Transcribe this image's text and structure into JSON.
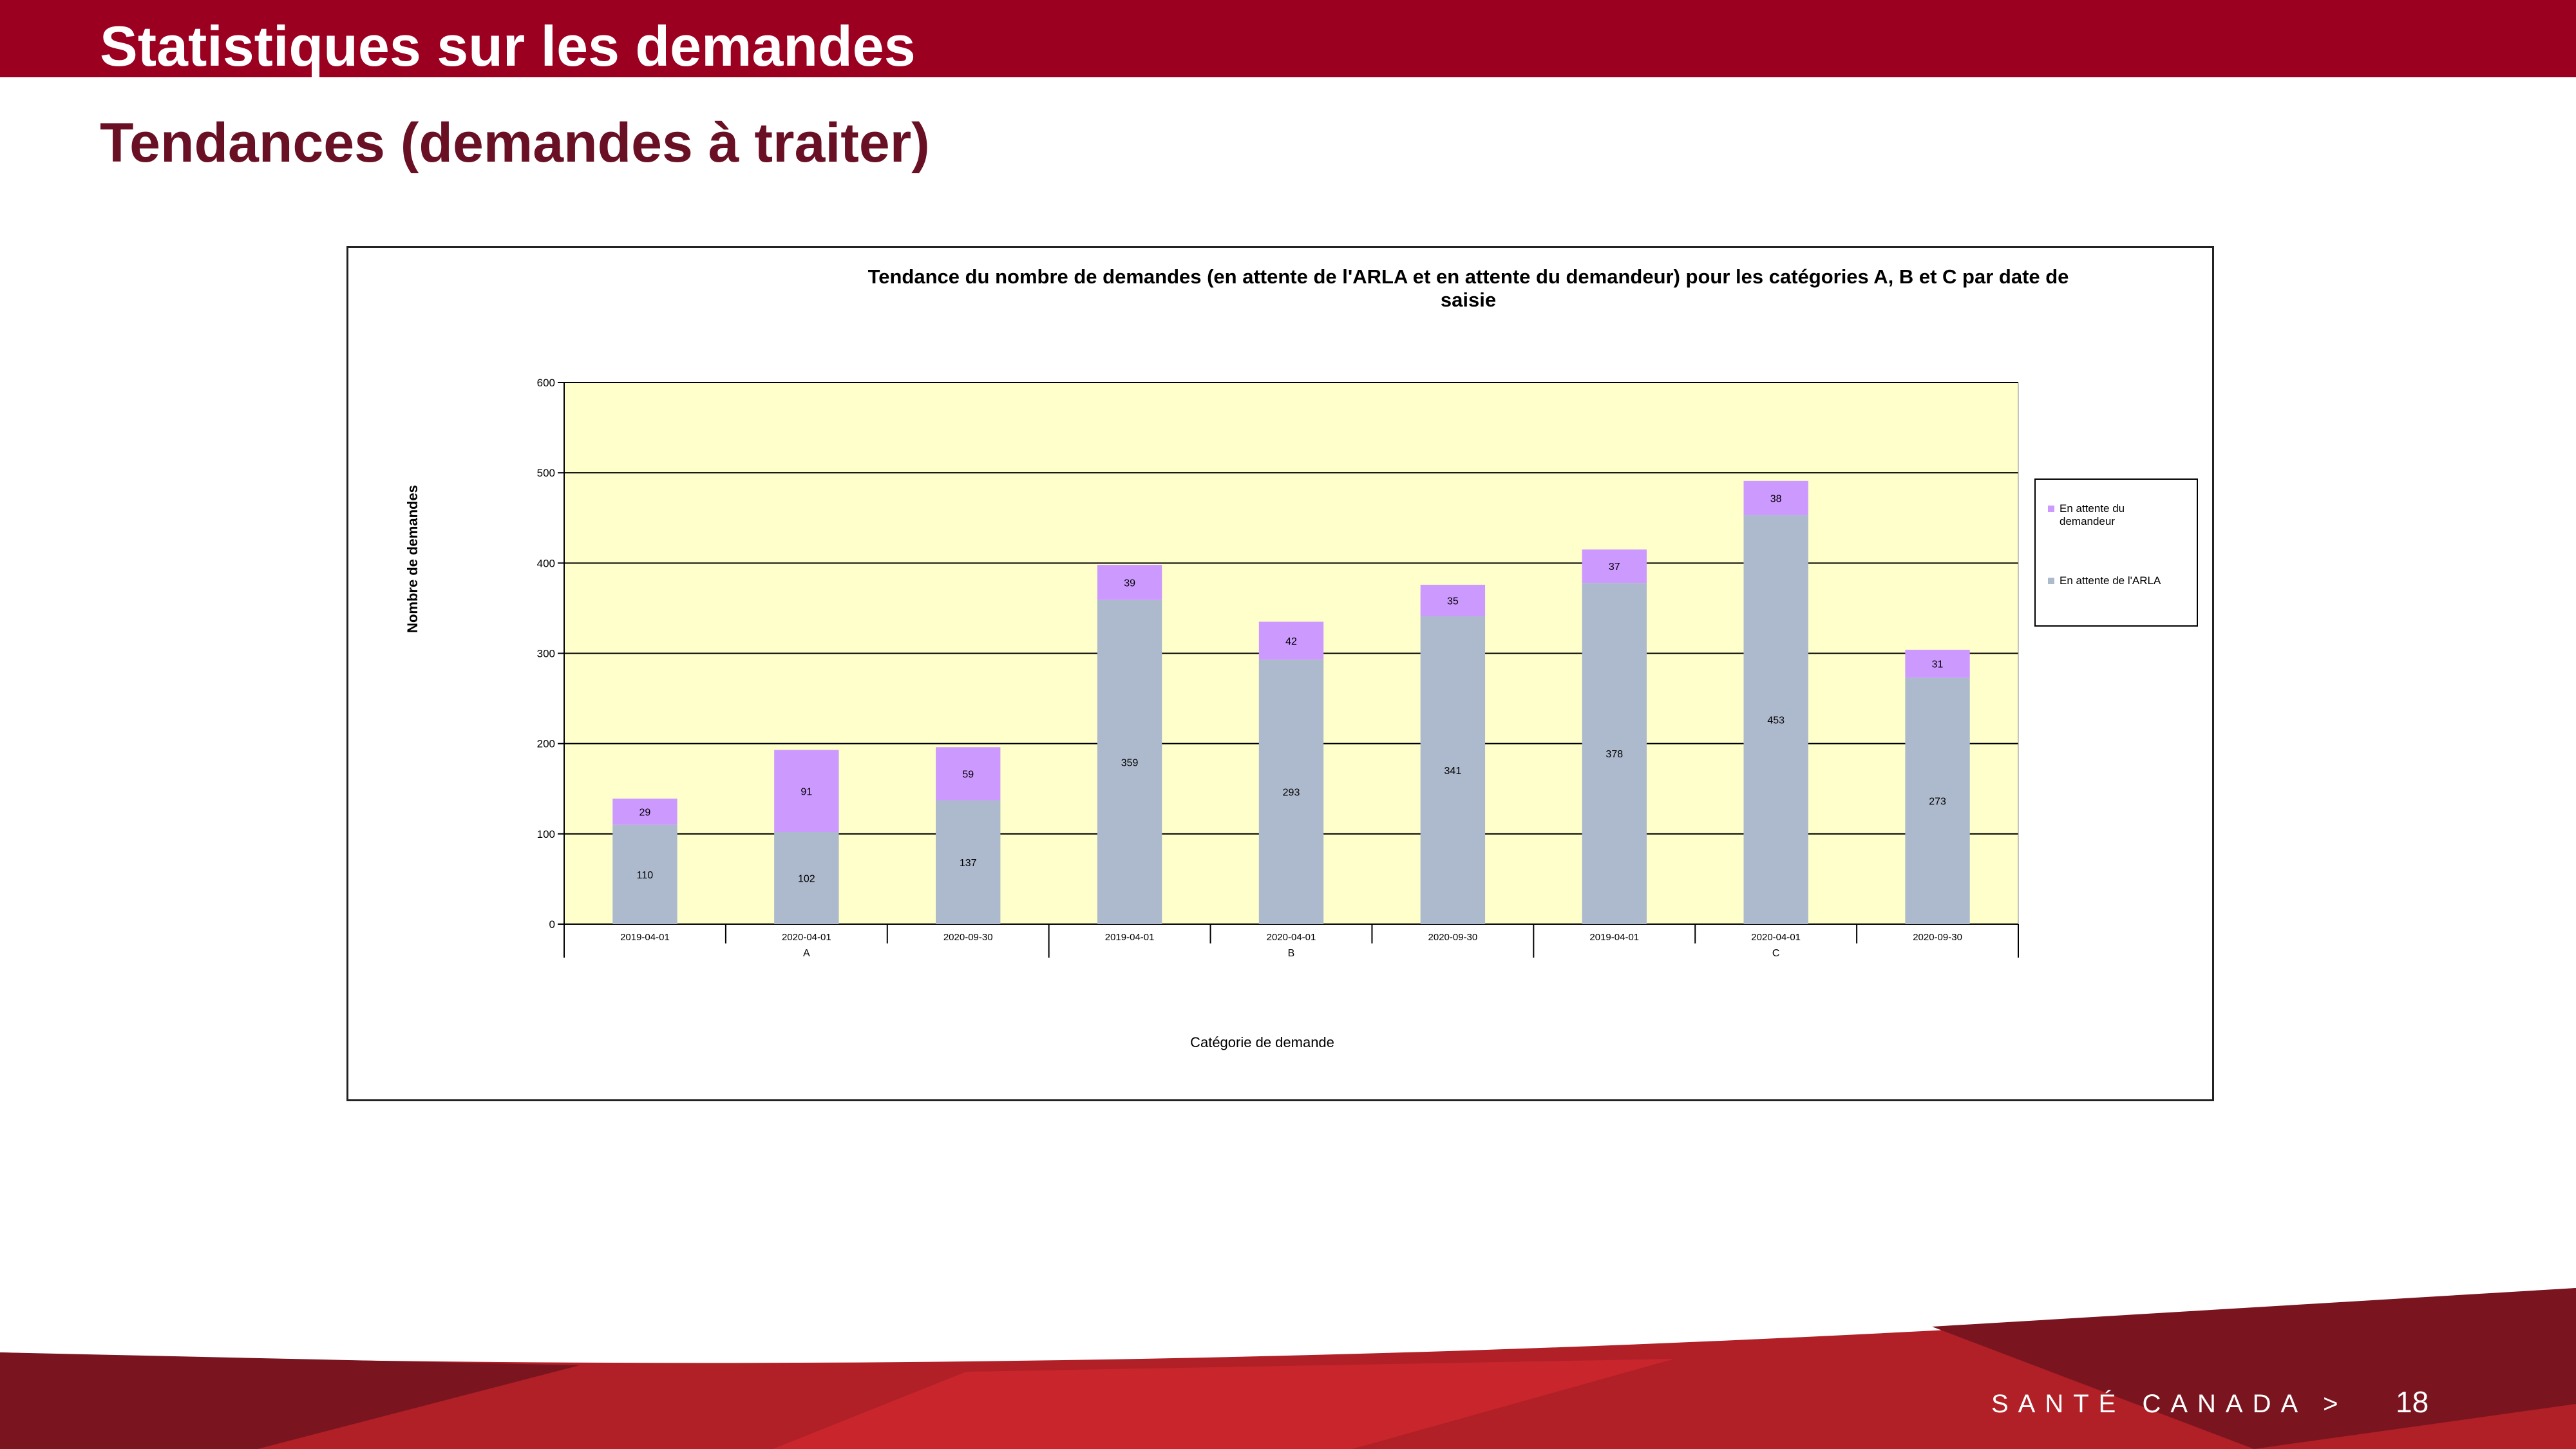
{
  "slide": {
    "title": "Statistiques sur les demandes",
    "subtitle": "Tendances (demandes à traiter)",
    "brand": "SANTÉ CANADA >",
    "page_number": "18"
  },
  "colors": {
    "banner": "#9b0020",
    "subtitle": "#6a1025",
    "plot_background": "#ffffcc",
    "series_arla": "#adb9cc",
    "series_demandeur": "#cc99ff",
    "footer_dark": "#7a1520",
    "footer_mid": "#b11f27",
    "footer_light": "#c8252c"
  },
  "chart_data": {
    "type": "bar",
    "stacked": true,
    "title": "Tendance du nombre de demandes (en attente de l'ARLA et en attente du demandeur) pour les catégories A, B et C par date de saisie",
    "title_lines": [
      "Tendance du nombre de demandes (en attente de l'ARLA et en attente du demandeur) pour les catégories A, B et C par date de",
      "saisie"
    ],
    "xlabel": "Catégorie de demande",
    "ylabel": "Nombre de demandes",
    "ylim": [
      0,
      600
    ],
    "yticks": [
      0,
      100,
      200,
      300,
      400,
      500,
      600
    ],
    "grid": true,
    "legend_position": "right",
    "categories": [
      "2019-04-01",
      "2020-04-01",
      "2020-09-30",
      "2019-04-01",
      "2020-04-01",
      "2020-09-30",
      "2019-04-01",
      "2020-04-01",
      "2020-09-30"
    ],
    "groups": [
      {
        "label": "A",
        "span": 3
      },
      {
        "label": "B",
        "span": 3
      },
      {
        "label": "C",
        "span": 3
      }
    ],
    "series": [
      {
        "name": "En attente de l'ARLA",
        "values": [
          110,
          102,
          137,
          359,
          293,
          341,
          378,
          453,
          273
        ]
      },
      {
        "name": "En attente du demandeur",
        "values": [
          29,
          91,
          59,
          39,
          42,
          35,
          37,
          38,
          31
        ]
      }
    ],
    "legend": [
      {
        "lines": [
          "En attente du",
          "demandeur"
        ],
        "series_index": 1
      },
      {
        "lines": [
          "En attente de l'ARLA"
        ],
        "series_index": 0
      }
    ]
  }
}
